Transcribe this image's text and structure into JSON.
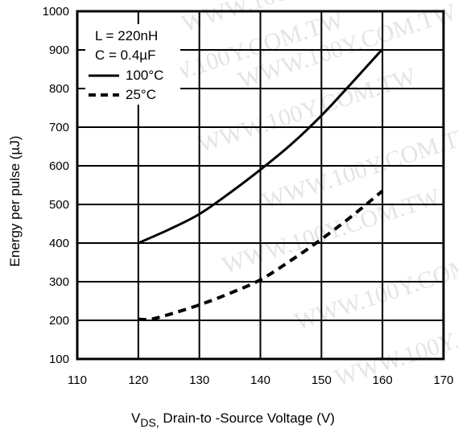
{
  "chart_data": {
    "type": "line",
    "title": "",
    "xlabel_main": "V",
    "xlabel_sub": "DS,",
    "xlabel_rest": " Drain-to -Source Voltage  (V)",
    "ylabel": "Energy per pulse (µJ)",
    "xlim": [
      110,
      170
    ],
    "ylim": [
      100,
      1000
    ],
    "xticks": [
      110,
      120,
      130,
      140,
      150,
      160,
      170
    ],
    "yticks": [
      100,
      200,
      300,
      400,
      500,
      600,
      700,
      800,
      900,
      1000
    ],
    "grid": true,
    "legend_position": "top-left",
    "legend_params": [
      "L = 220nH",
      "C = 0.4µF"
    ],
    "series": [
      {
        "name": "100°C",
        "style": "solid",
        "color": "#000000",
        "x": [
          120,
          125,
          130,
          135,
          140,
          145,
          150,
          155,
          160
        ],
        "y": [
          400,
          435,
          475,
          530,
          590,
          655,
          730,
          815,
          902
        ]
      },
      {
        "name": "25°C",
        "style": "dashed",
        "color": "#000000",
        "x": [
          120,
          122,
          125,
          130,
          135,
          140,
          145,
          150,
          155,
          160
        ],
        "y": [
          203,
          203,
          215,
          240,
          270,
          305,
          355,
          410,
          470,
          535
        ]
      }
    ],
    "watermark_text": "WWW.100Y.COM.TW"
  }
}
